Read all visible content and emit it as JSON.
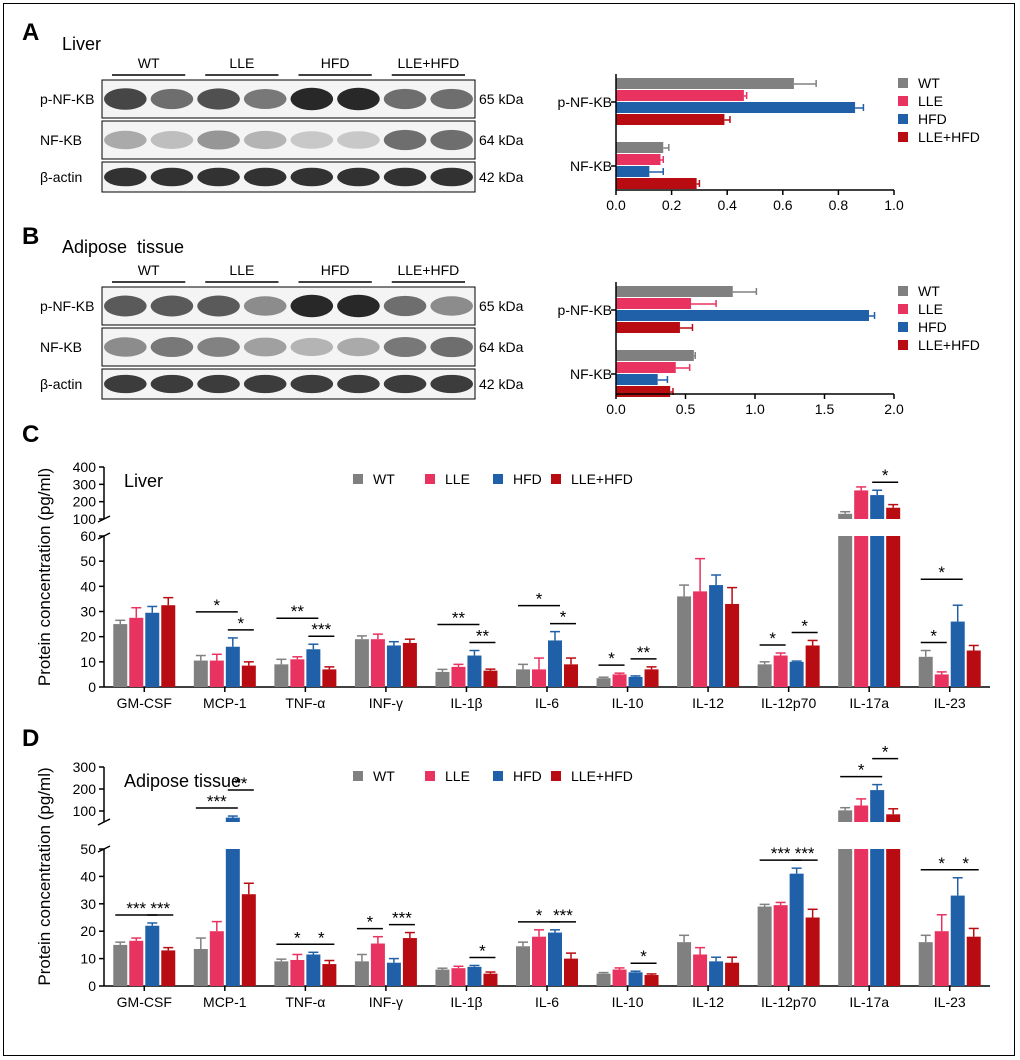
{
  "colors": {
    "WT": "#808080",
    "LLE": "#e8325f",
    "HFD": "#2060a8",
    "LLE+HFD": "#b80c12"
  },
  "groups": [
    "WT",
    "LLE",
    "HFD",
    "LLE+HFD"
  ],
  "panels": {
    "A": {
      "letter": "A",
      "tissue": "Liver",
      "rows": [
        "p-NF-KB",
        "NF-KB",
        "β-actin"
      ],
      "sizes": [
        "65 kDa",
        "64 kDa",
        "42 kDa"
      ]
    },
    "B": {
      "letter": "B",
      "tissue": "Adipose  tissue",
      "rows": [
        "p-NF-KB",
        "NF-KB",
        "β-actin"
      ],
      "sizes": [
        "65 kDa",
        "64 kDa",
        "42 kDa"
      ]
    },
    "C": {
      "letter": "C",
      "tissue": "Liver"
    },
    "D": {
      "letter": "D",
      "tissue": "Adipose  tissue"
    }
  },
  "chart_data": [
    {
      "id": "A-hbar",
      "type": "bar",
      "orientation": "horizontal",
      "categories": [
        "p-NF-KB",
        "NF-KB"
      ],
      "series": [
        {
          "name": "WT",
          "values": [
            0.64,
            0.17
          ],
          "errors": [
            0.08,
            0.02
          ]
        },
        {
          "name": "LLE",
          "values": [
            0.46,
            0.16
          ],
          "errors": [
            0.01,
            0.01
          ]
        },
        {
          "name": "HFD",
          "values": [
            0.86,
            0.12
          ],
          "errors": [
            0.03,
            0.05
          ]
        },
        {
          "name": "LLE+HFD",
          "values": [
            0.39,
            0.29
          ],
          "errors": [
            0.02,
            0.01
          ]
        }
      ],
      "xlim": [
        0,
        1.0
      ],
      "xticks": [
        "0.0",
        "0.2",
        "0.4",
        "0.6",
        "0.8",
        "1.0"
      ],
      "legend": "right"
    },
    {
      "id": "B-hbar",
      "type": "bar",
      "orientation": "horizontal",
      "categories": [
        "p-NF-KB",
        "NF-KB"
      ],
      "series": [
        {
          "name": "WT",
          "values": [
            0.84,
            0.56
          ],
          "errors": [
            0.17,
            0.01
          ]
        },
        {
          "name": "LLE",
          "values": [
            0.54,
            0.43
          ],
          "errors": [
            0.18,
            0.1
          ]
        },
        {
          "name": "HFD",
          "values": [
            1.82,
            0.3
          ],
          "errors": [
            0.04,
            0.07
          ]
        },
        {
          "name": "LLE+HFD",
          "values": [
            0.46,
            0.39
          ],
          "errors": [
            0.09,
            0.02
          ]
        }
      ],
      "xlim": [
        0,
        2.0
      ],
      "xticks": [
        "0.0",
        "0.5",
        "1.0",
        "1.5",
        "2.0"
      ],
      "legend": "right"
    },
    {
      "id": "C-bar",
      "type": "bar",
      "ylabel": "Protein concentration (pg/ml)",
      "categories": [
        "GM-CSF",
        "MCP-1",
        "TNF-α",
        "INF-γ",
        "IL-1β",
        "IL-6",
        "IL-10",
        "IL-12",
        "IL-12p70",
        "IL-17a",
        "IL-23"
      ],
      "series": [
        {
          "name": "WT",
          "values": [
            25,
            10.5,
            9,
            19,
            6,
            7,
            3.5,
            36,
            9,
            130,
            12
          ],
          "errors": [
            1.5,
            2,
            2,
            1.3,
            1,
            2,
            0.4,
            4.5,
            1,
            12,
            2.5
          ]
        },
        {
          "name": "LLE",
          "values": [
            27.5,
            10.5,
            11,
            19,
            8,
            7,
            5,
            38,
            12.5,
            265,
            5
          ],
          "errors": [
            4,
            2.5,
            1,
            2,
            1,
            4.5,
            0.5,
            13,
            1,
            20,
            1
          ]
        },
        {
          "name": "HFD",
          "values": [
            29.5,
            16,
            15,
            16.5,
            12.5,
            18.5,
            4,
            40.5,
            10,
            238,
            26
          ],
          "errors": [
            2.5,
            3.5,
            2,
            1.5,
            2,
            3.5,
            0.4,
            4,
            0.3,
            28,
            6.5
          ]
        },
        {
          "name": "LLE+HFD",
          "values": [
            32.5,
            8.5,
            7,
            17.5,
            6.5,
            9,
            7,
            33,
            16.5,
            165,
            14.5
          ],
          "errors": [
            3,
            1.5,
            1,
            1.5,
            0.6,
            2.5,
            1,
            6.5,
            2,
            18,
            2
          ]
        }
      ],
      "ylim_lower": [
        0,
        60
      ],
      "ylim_upper": [
        100,
        400
      ],
      "yticks_lower": [
        "0",
        "10",
        "20",
        "30",
        "40",
        "50",
        "60"
      ],
      "yticks_upper": [
        "100",
        "200",
        "300",
        "400"
      ],
      "legend": "top-center",
      "significance": [
        {
          "cat": 1,
          "from": 0,
          "to": 2,
          "level": 1,
          "label": "*"
        },
        {
          "cat": 1,
          "from": 2,
          "to": 3,
          "level": 0,
          "label": "*"
        },
        {
          "cat": 2,
          "from": 0,
          "to": 2,
          "level": 1,
          "label": "**"
        },
        {
          "cat": 2,
          "from": 2,
          "to": 3,
          "level": 0,
          "label": "***"
        },
        {
          "cat": 4,
          "from": 0,
          "to": 2,
          "level": 1,
          "label": "**"
        },
        {
          "cat": 4,
          "from": 2,
          "to": 3,
          "level": 0,
          "label": "**"
        },
        {
          "cat": 5,
          "from": 0,
          "to": 2,
          "level": 1,
          "label": "*"
        },
        {
          "cat": 5,
          "from": 2,
          "to": 3,
          "level": 0,
          "label": "*"
        },
        {
          "cat": 6,
          "from": 0,
          "to": 1,
          "level": 0,
          "label": "*"
        },
        {
          "cat": 6,
          "from": 2,
          "to": 3,
          "level": 0,
          "label": "**"
        },
        {
          "cat": 8,
          "from": 0,
          "to": 1,
          "level": 0,
          "label": "*"
        },
        {
          "cat": 8,
          "from": 2,
          "to": 3,
          "level": 0,
          "label": "*"
        },
        {
          "cat": 9,
          "from": 2,
          "to": 3,
          "level": 0,
          "label": "*"
        },
        {
          "cat": 10,
          "from": 0,
          "to": 1,
          "level": 0,
          "label": "*"
        },
        {
          "cat": 10,
          "from": 0,
          "to": 2,
          "level": 1,
          "label": "*"
        }
      ]
    },
    {
      "id": "D-bar",
      "type": "bar",
      "ylabel": "Protein concentration (pg/ml)",
      "categories": [
        "GM-CSF",
        "MCP-1",
        "TNF-α",
        "INF-γ",
        "IL-1β",
        "IL-6",
        "IL-10",
        "IL-12",
        "IL-12p70",
        "IL-17a",
        "IL-23"
      ],
      "series": [
        {
          "name": "WT",
          "values": [
            15,
            13.5,
            9,
            9,
            6,
            14.5,
            4.5,
            16,
            29,
            103,
            16
          ],
          "errors": [
            1,
            4,
            0.8,
            2.5,
            0.5,
            1.5,
            0.4,
            2.5,
            0.8,
            12,
            2.5
          ]
        },
        {
          "name": "LLE",
          "values": [
            16.5,
            20,
            9.5,
            15.5,
            6.5,
            18,
            6,
            11.5,
            29.5,
            125,
            20
          ],
          "errors": [
            1,
            3.5,
            2,
            2.5,
            0.7,
            2.5,
            0.6,
            2.5,
            1,
            30,
            6
          ]
        },
        {
          "name": "HFD",
          "values": [
            22,
            70,
            11.5,
            8.5,
            7,
            19.5,
            5,
            9,
            41,
            195,
            33
          ],
          "errors": [
            1,
            7,
            0.8,
            1.5,
            0.5,
            1,
            0.4,
            1.5,
            2,
            25,
            6.5
          ]
        },
        {
          "name": "LLE+HFD",
          "values": [
            13,
            33.5,
            8,
            17.5,
            4.5,
            10,
            4,
            8.5,
            25,
            85,
            18
          ],
          "errors": [
            1,
            4,
            1.3,
            2,
            0.6,
            2,
            0.4,
            2,
            3,
            25,
            3
          ]
        }
      ],
      "ylim_lower": [
        0,
        50
      ],
      "ylim_upper": [
        50,
        300
      ],
      "yticks_lower": [
        "0",
        "10",
        "20",
        "30",
        "40",
        "50"
      ],
      "yticks_upper": [
        "100",
        "200",
        "300"
      ],
      "legend": "top-center",
      "significance": [
        {
          "cat": 0,
          "from": 0,
          "to": 2,
          "level": 0,
          "label": "***"
        },
        {
          "cat": 0,
          "from": 2,
          "to": 3,
          "level": 0,
          "label": "***"
        },
        {
          "cat": 1,
          "from": 0,
          "to": 2,
          "level": 0,
          "label": "***"
        },
        {
          "cat": 1,
          "from": 2,
          "to": 3,
          "level": 1,
          "label": "**"
        },
        {
          "cat": 2,
          "from": 0,
          "to": 2,
          "level": 0,
          "label": "*"
        },
        {
          "cat": 2,
          "from": 2,
          "to": 3,
          "level": 0,
          "label": "*"
        },
        {
          "cat": 3,
          "from": 0,
          "to": 1,
          "level": 0,
          "label": "*"
        },
        {
          "cat": 3,
          "from": 2,
          "to": 3,
          "level": 0,
          "label": "***"
        },
        {
          "cat": 4,
          "from": 2,
          "to": 3,
          "level": 0,
          "label": "*"
        },
        {
          "cat": 5,
          "from": 0,
          "to": 2,
          "level": 0,
          "label": "*"
        },
        {
          "cat": 5,
          "from": 2,
          "to": 3,
          "level": 0,
          "label": "***"
        },
        {
          "cat": 6,
          "from": 2,
          "to": 3,
          "level": 0,
          "label": "*"
        },
        {
          "cat": 8,
          "from": 0,
          "to": 2,
          "level": 0,
          "label": "***"
        },
        {
          "cat": 8,
          "from": 2,
          "to": 3,
          "level": 0,
          "label": "***"
        },
        {
          "cat": 9,
          "from": 0,
          "to": 2,
          "level": 0,
          "label": "*"
        },
        {
          "cat": 9,
          "from": 2,
          "to": 3,
          "level": 1,
          "label": "*"
        },
        {
          "cat": 10,
          "from": 0,
          "to": 2,
          "level": 0,
          "label": "*"
        },
        {
          "cat": 10,
          "from": 2,
          "to": 3,
          "level": 0,
          "label": "*"
        }
      ]
    }
  ]
}
